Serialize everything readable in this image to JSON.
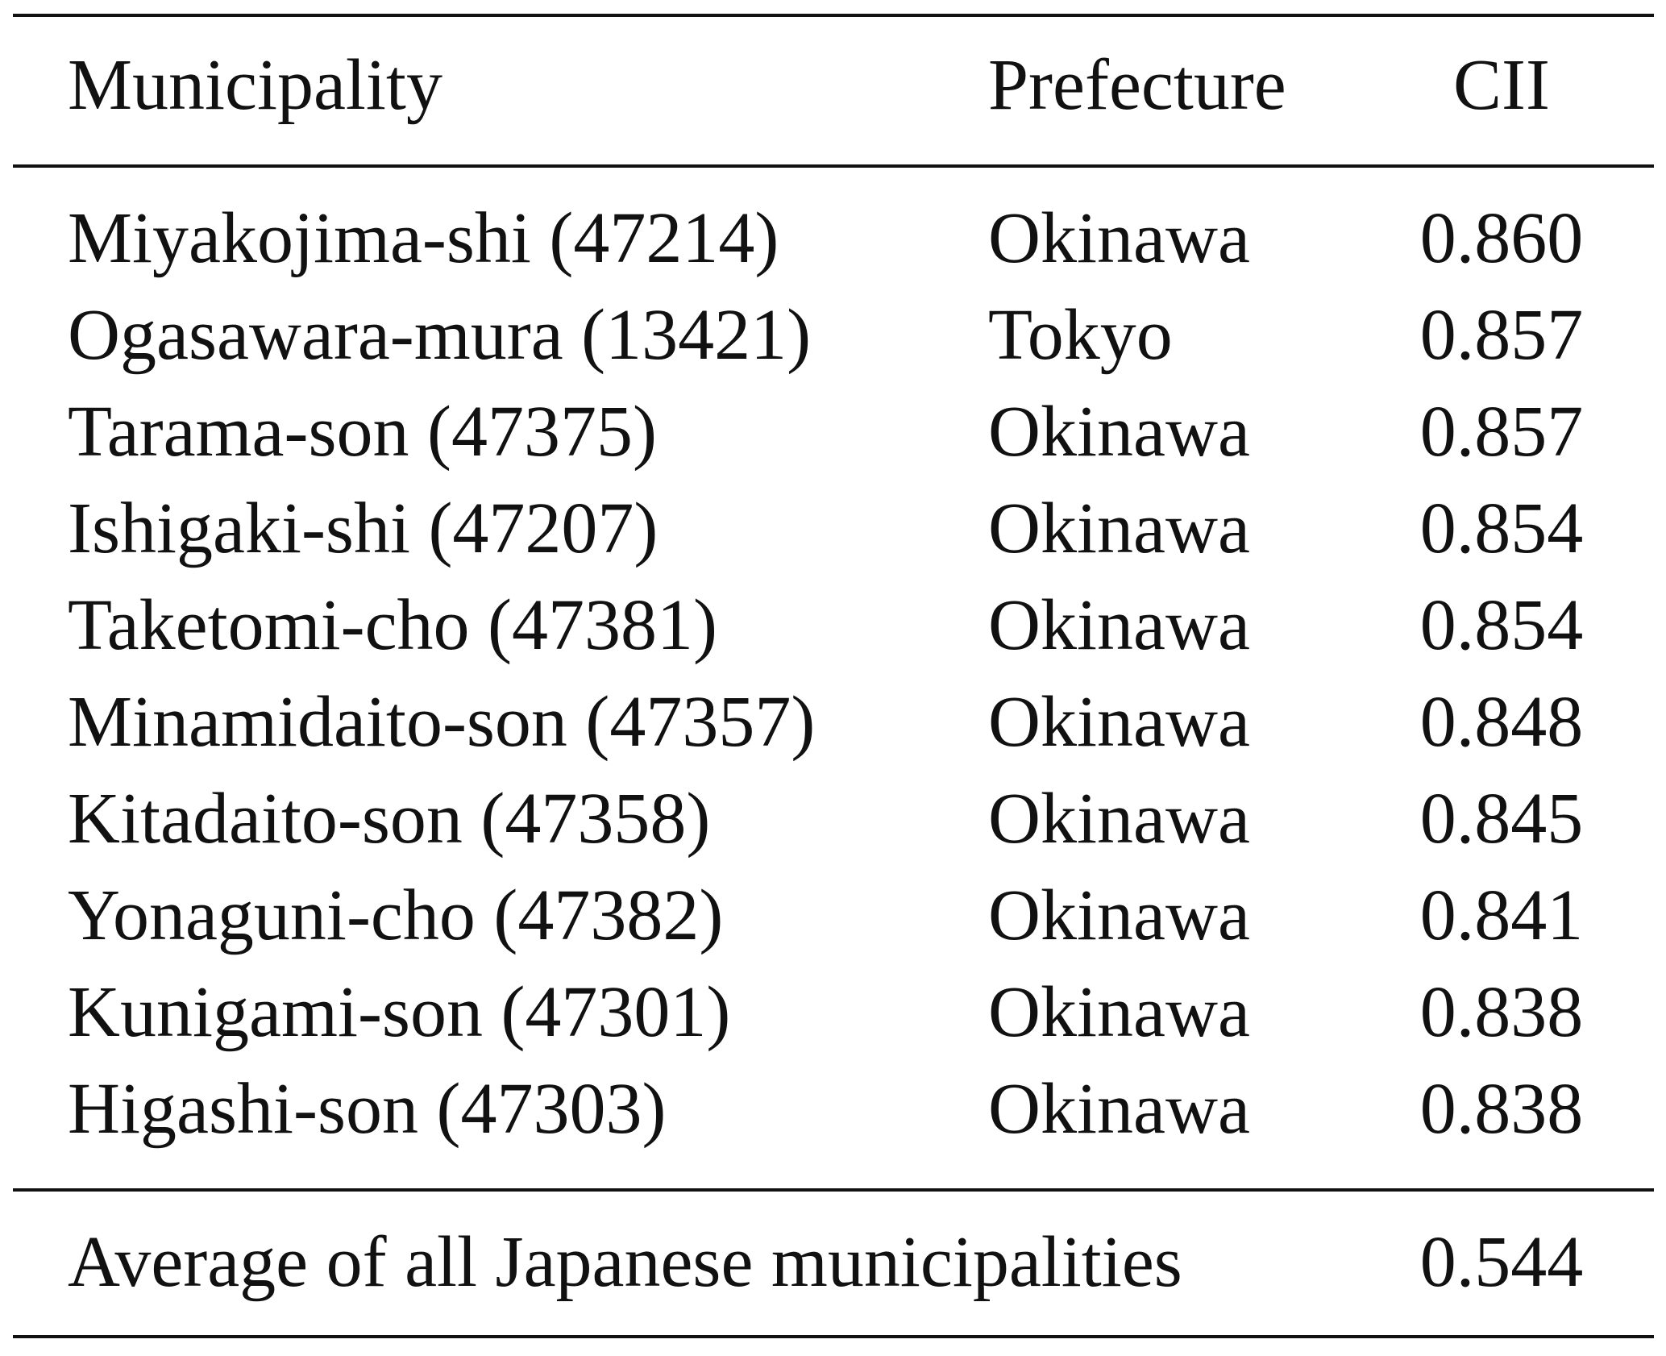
{
  "table": {
    "headers": {
      "municipality": "Municipality",
      "prefecture": "Prefecture",
      "cii": "CII"
    },
    "rows": [
      {
        "municipality": "Miyakojima-shi (47214)",
        "prefecture": "Okinawa",
        "cii": "0.860"
      },
      {
        "municipality": "Ogasawara-mura (13421)",
        "prefecture": "Tokyo",
        "cii": "0.857"
      },
      {
        "municipality": "Tarama-son (47375)",
        "prefecture": "Okinawa",
        "cii": "0.857"
      },
      {
        "municipality": "Ishigaki-shi (47207)",
        "prefecture": "Okinawa",
        "cii": "0.854"
      },
      {
        "municipality": "Taketomi-cho (47381)",
        "prefecture": "Okinawa",
        "cii": "0.854"
      },
      {
        "municipality": "Minamidaito-son (47357)",
        "prefecture": "Okinawa",
        "cii": "0.848"
      },
      {
        "municipality": "Kitadaito-son (47358)",
        "prefecture": "Okinawa",
        "cii": "0.845"
      },
      {
        "municipality": "Yonaguni-cho (47382)",
        "prefecture": "Okinawa",
        "cii": "0.841"
      },
      {
        "municipality": "Kunigami-son (47301)",
        "prefecture": "Okinawa",
        "cii": "0.838"
      },
      {
        "municipality": "Higashi-son (47303)",
        "prefecture": "Okinawa",
        "cii": "0.838"
      }
    ],
    "footer": {
      "label": "Average of all Japanese municipalities",
      "cii": "0.544"
    }
  }
}
